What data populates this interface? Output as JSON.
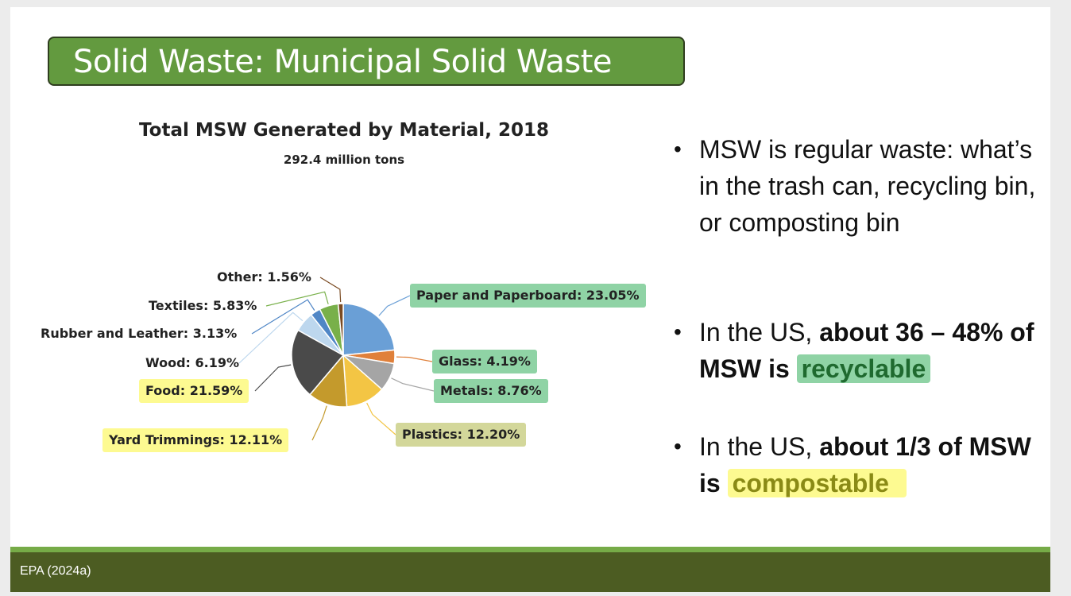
{
  "slide": {
    "title": "Solid Waste: Municipal Solid Waste",
    "footer": "EPA (2024a)"
  },
  "bullets": [
    {
      "plain": "MSW is regular waste: what’s in the trash can, recycling bin, or composting bin"
    },
    {
      "pre": "In the US, ",
      "bold": "about 36 – 48% of MSW is ",
      "highlight": "recyclable",
      "highlight_color": "green"
    },
    {
      "pre": "In the US, ",
      "bold": "about 1/3 of MSW is ",
      "highlight": "compostable",
      "highlight_color": "yellow"
    }
  ],
  "colors": {
    "title_bg": "#639a3f",
    "footer_bg": "#4c5c22",
    "footer_line": "#76ab47",
    "highlight_green": "#8fd3a5",
    "highlight_yellow": "#fdfa91",
    "highlight_olive": "#d3d79a"
  },
  "chart_data": {
    "type": "pie",
    "title": "Total MSW Generated by Material, 2018",
    "subtitle": "292.4 million tons",
    "slices": [
      {
        "name": "Paper and Paperboard",
        "value": 23.05,
        "label": "Paper and Paperboard: 23.05%",
        "color": "#6a9fd6",
        "label_bg": "#8fd3a5"
      },
      {
        "name": "Glass",
        "value": 4.19,
        "label": "Glass: 4.19%",
        "color": "#e0803a",
        "label_bg": "#8fd3a5"
      },
      {
        "name": "Metals",
        "value": 8.76,
        "label": "Metals: 8.76%",
        "color": "#a5a5a5",
        "label_bg": "#8fd3a5"
      },
      {
        "name": "Plastics",
        "value": 12.2,
        "label": "Plastics: 12.20%",
        "color": "#f3c544",
        "label_bg": "#d3d79a"
      },
      {
        "name": "Yard Trimmings",
        "value": 12.11,
        "label": "Yard Trimmings: 12.11%",
        "color": "#c49a2c",
        "label_bg": "#fdfa91"
      },
      {
        "name": "Food",
        "value": 21.59,
        "label": "Food: 21.59%",
        "color": "#4a4a4a",
        "label_bg": "#fdfa91"
      },
      {
        "name": "Wood",
        "value": 6.19,
        "label": "Wood: 6.19%",
        "color": "#bdd7ee",
        "label_bg": ""
      },
      {
        "name": "Rubber and Leather",
        "value": 3.13,
        "label": "Rubber and Leather: 3.13%",
        "color": "#4f86c6",
        "label_bg": ""
      },
      {
        "name": "Textiles",
        "value": 5.83,
        "label": "Textiles: 5.83%",
        "color": "#78b04a",
        "label_bg": ""
      },
      {
        "name": "Other",
        "value": 1.56,
        "label": "Other: 1.56%",
        "color": "#7a4a22",
        "label_bg": ""
      }
    ]
  }
}
